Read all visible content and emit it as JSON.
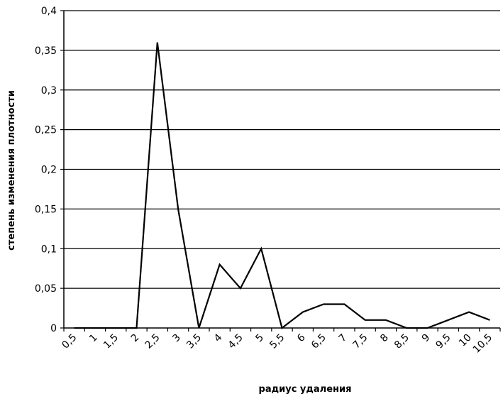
{
  "chart_data": {
    "type": "line",
    "xlabel": "радиус удаления",
    "ylabel": "степень изменения плотности",
    "ylim": [
      0,
      0.4
    ],
    "yticks": [
      "0",
      "0,05",
      "0,1",
      "0,15",
      "0,2",
      "0,25",
      "0,3",
      "0,35",
      "0,4"
    ],
    "categories": [
      "0,5",
      "1",
      "1,5",
      "2",
      "2,5",
      "3",
      "3,5",
      "4",
      "4,5",
      "5",
      "5,5",
      "6",
      "6,5",
      "7",
      "7,5",
      "8",
      "8,5",
      "9",
      "9,5",
      "10",
      "10,5"
    ],
    "grid": true,
    "legend": "none",
    "series": [
      {
        "values": [
          0,
          0,
          0,
          0,
          0.36,
          0.15,
          0,
          0.08,
          0.05,
          0.1,
          0,
          0.02,
          0.03,
          0.03,
          0.01,
          0.01,
          0,
          0,
          0.01,
          0.02,
          0.01
        ],
        "color": "#000000"
      }
    ]
  }
}
